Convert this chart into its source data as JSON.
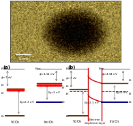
{
  "bg_color": "#dde8cc",
  "panel_a_label": "(a)",
  "panel_b_label": "(b)",
  "gray": "#777777",
  "dark_blue": "#000080",
  "dark_brown": "#5a3000",
  "red": "#cc0000",
  "img_bg_light": "#c8b87a",
  "img_bg_dark": "#4a3a10"
}
